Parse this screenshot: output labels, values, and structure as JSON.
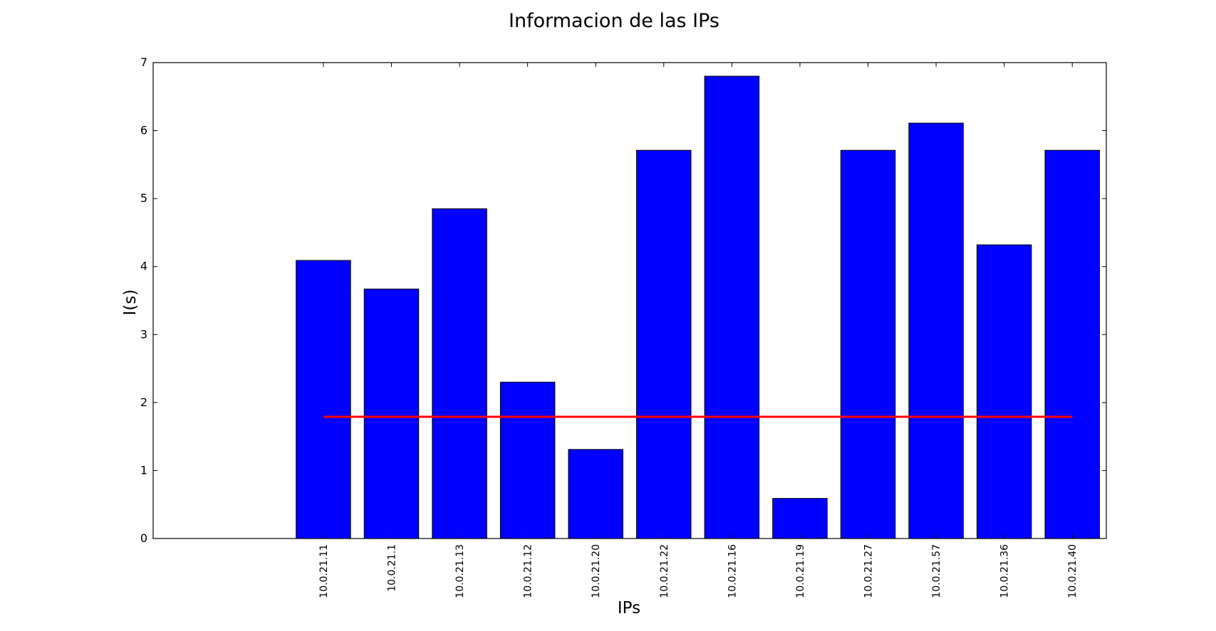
{
  "chart_data": {
    "type": "bar",
    "title": "Informacion de las IPs",
    "xlabel": "IPs",
    "ylabel": "I(s)",
    "ylim": [
      0,
      7
    ],
    "yticks": [
      0,
      1,
      2,
      3,
      4,
      5,
      6,
      7
    ],
    "grid": false,
    "categories": [
      "10.0.21.11",
      "10.0.21.1",
      "10.0.21.13",
      "10.0.21.12",
      "10.0.21.20",
      "10.0.21.22",
      "10.0.21.16",
      "10.0.21.19",
      "10.0.21.27",
      "10.0.21.57",
      "10.0.21.36",
      "10.0.21.40"
    ],
    "values": [
      4.09,
      3.67,
      4.85,
      2.3,
      1.31,
      5.71,
      6.8,
      0.59,
      5.71,
      6.11,
      4.32,
      5.71
    ],
    "reference_line": {
      "y": 1.79,
      "color": "#ff0000"
    },
    "bar_color": "#0000ff",
    "bar_edge_color": "#000000"
  }
}
